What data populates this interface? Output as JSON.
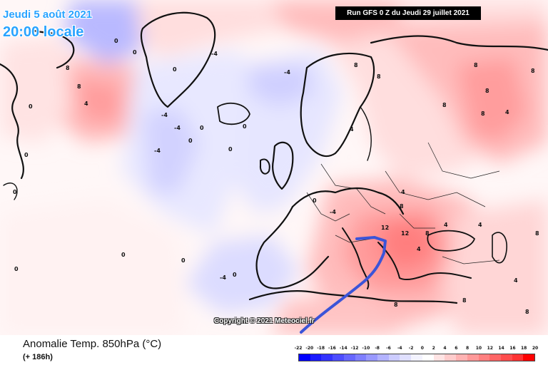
{
  "header": {
    "date_line1": "Jeudi 5 août 2021",
    "date_line2": "20:00 locale",
    "run": "Run GFS 0 Z du Jeudi 29 juillet 2021"
  },
  "map": {
    "copyright": "Copyright © 2021 Meteociel.fr",
    "accent_color": "#3b54d8",
    "labels": {
      "l1": "8",
      "l2": "8",
      "l3": "4",
      "l4": "0",
      "l5": "0",
      "l6": "0",
      "l7": "-4",
      "l8": "-4",
      "l9": "0",
      "l10": "-4",
      "l11": "-4",
      "l12": "0",
      "l13": "0",
      "l14": "0",
      "l15": "0",
      "l16": "8",
      "l17": "8",
      "l18": "4",
      "l19": "8",
      "l20": "8",
      "l21": "4",
      "l22": "8",
      "l23": "8",
      "l24": "8",
      "l25": "12",
      "l26": "12",
      "l27": "8",
      "l28": "4",
      "l29": "4",
      "l30": "0",
      "l31": "-4",
      "l32": "-4",
      "l33": "4",
      "l34": "8",
      "l35": "8",
      "l36": "0",
      "l37": "-4",
      "l38": "0",
      "l39": "4",
      "l40": "8",
      "l41": "4",
      "l42": "0",
      "l43": "0",
      "l44": "0",
      "l45": "0",
      "l46": "8",
      "l47": "8"
    }
  },
  "footer": {
    "title": "Anomalie Temp. 850hPa (°C)",
    "subtitle": "(+ 186h)"
  },
  "legend": {
    "ticks": [
      "-22",
      "-20",
      "-18",
      "-16",
      "-14",
      "-12",
      "-10",
      "-8",
      "-6",
      "-4",
      "-2",
      "0",
      "2",
      "4",
      "6",
      "8",
      "10",
      "12",
      "14",
      "16",
      "18",
      "20"
    ],
    "colors": [
      "#0000ff",
      "#1a1aff",
      "#3333ff",
      "#4d4dff",
      "#6666ff",
      "#7f7fff",
      "#9999ff",
      "#b3b3ff",
      "#ccccff",
      "#e0e0ff",
      "#f3f3ff",
      "#ffffff",
      "#ffe4e4",
      "#ffcccc",
      "#ffb3b3",
      "#ff9999",
      "#ff8080",
      "#ff6666",
      "#ff4d4d",
      "#ff3333",
      "#ff0000"
    ]
  }
}
